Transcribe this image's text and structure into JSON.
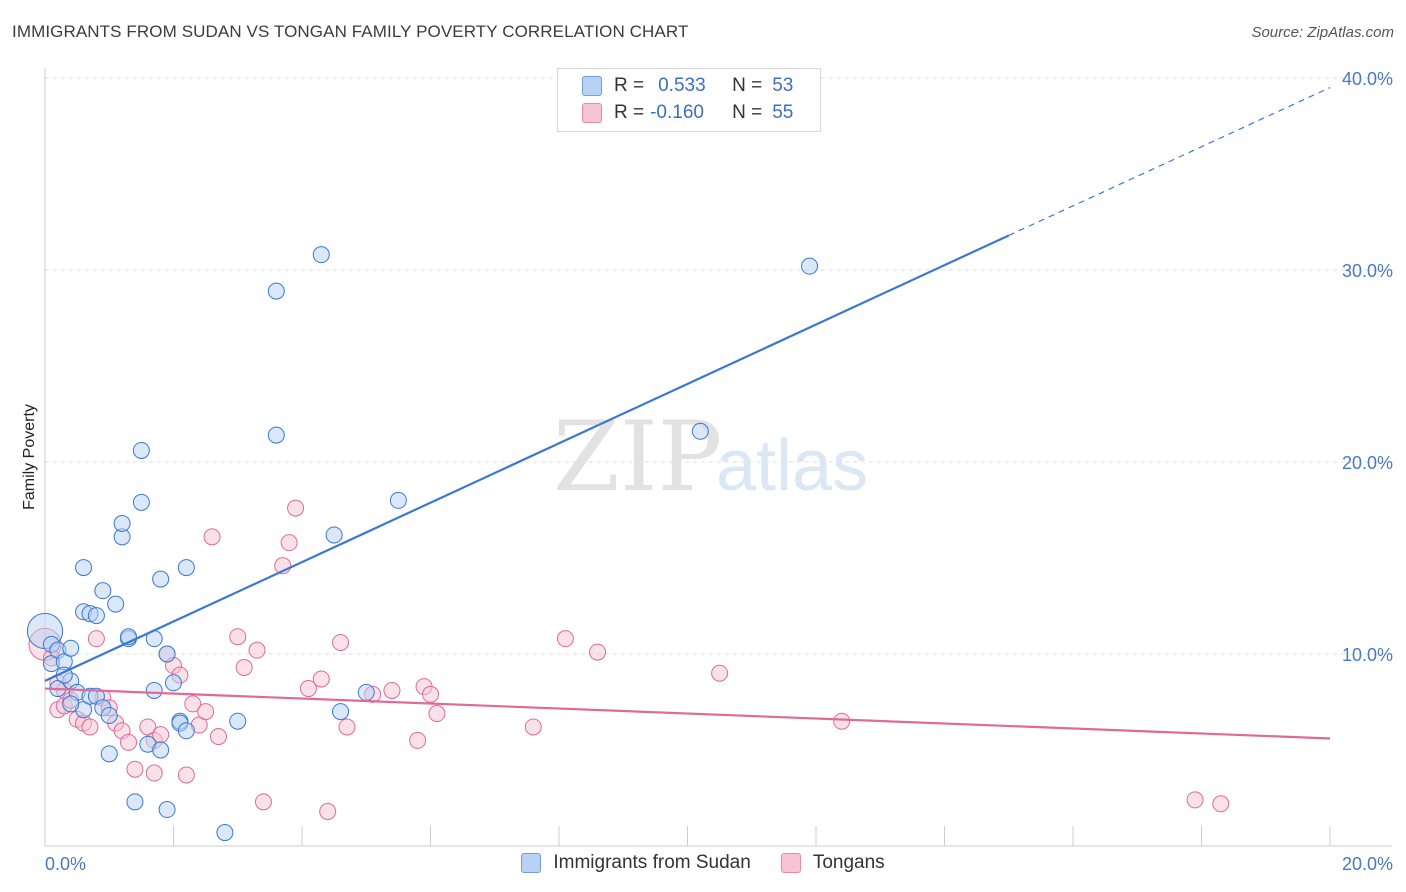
{
  "title": "IMMIGRANTS FROM SUDAN VS TONGAN FAMILY POVERTY CORRELATION CHART",
  "source": "Source: ZipAtlas.com",
  "colors": {
    "series_a": "#3a78d4",
    "series_a_fill": "#b7d2f3",
    "series_b": "#e06a96",
    "series_b_fill": "#f6c3d4",
    "tick_text": "#4a78c2"
  },
  "legend": {
    "row1": {
      "r_label": "R =",
      "r_value": "0.533",
      "n_label": "N =",
      "n_value": "53"
    },
    "row2": {
      "r_label": "R =",
      "r_value": "-0.160",
      "n_label": "N =",
      "n_value": "55"
    }
  },
  "watermark": {
    "zip": "ZIP",
    "atlas": "atlas"
  },
  "chart_data": {
    "type": "scatter",
    "title": "IMMIGRANTS FROM SUDAN VS TONGAN FAMILY POVERTY CORRELATION CHART",
    "xlabel": "",
    "ylabel": "Family Poverty",
    "xlim": [
      0,
      20
    ],
    "ylim": [
      0,
      40
    ],
    "x_tick_labels": [
      "0.0%",
      "20.0%"
    ],
    "y_ticks": [
      10,
      20,
      30,
      40
    ],
    "y_tick_labels": [
      "10.0%",
      "20.0%",
      "30.0%",
      "40.0%"
    ],
    "grid": true,
    "legend_position": "bottom",
    "series": [
      {
        "name": "Immigrants from Sudan",
        "r": 0.533,
        "n": 53,
        "trend": {
          "x0": 0,
          "y0": 8.6,
          "x1": 15,
          "y1": 31.8,
          "dashed_to": {
            "x": 20,
            "y": 39.5
          }
        },
        "points": [
          [
            0.0,
            11.2,
            2.2
          ],
          [
            0.1,
            10.5,
            1
          ],
          [
            0.1,
            9.5,
            1
          ],
          [
            0.2,
            10.2,
            1
          ],
          [
            0.3,
            9.6,
            1
          ],
          [
            0.2,
            8.2,
            1
          ],
          [
            0.4,
            8.6,
            1
          ],
          [
            0.3,
            8.9,
            1
          ],
          [
            0.5,
            8.0,
            1
          ],
          [
            0.6,
            7.1,
            1
          ],
          [
            0.4,
            7.4,
            1
          ],
          [
            0.7,
            7.8,
            1
          ],
          [
            0.8,
            7.8,
            1
          ],
          [
            0.9,
            7.2,
            1
          ],
          [
            0.6,
            12.2,
            1
          ],
          [
            0.7,
            12.1,
            1
          ],
          [
            0.8,
            12.0,
            1
          ],
          [
            0.6,
            14.5,
            1
          ],
          [
            0.9,
            13.3,
            1
          ],
          [
            1.1,
            12.6,
            1
          ],
          [
            1.2,
            16.1,
            1
          ],
          [
            1.2,
            16.8,
            1
          ],
          [
            1.5,
            17.9,
            1
          ],
          [
            1.5,
            20.6,
            1
          ],
          [
            1.3,
            10.8,
            1
          ],
          [
            1.7,
            10.8,
            1
          ],
          [
            1.7,
            8.1,
            1
          ],
          [
            1.8,
            13.9,
            1
          ],
          [
            1.9,
            10.0,
            1
          ],
          [
            2.0,
            8.5,
            1
          ],
          [
            2.2,
            14.5,
            1
          ],
          [
            2.1,
            6.5,
            1
          ],
          [
            2.1,
            6.4,
            1
          ],
          [
            2.2,
            6.0,
            1
          ],
          [
            1.6,
            5.3,
            1
          ],
          [
            1.8,
            5.0,
            1
          ],
          [
            1.0,
            4.8,
            1
          ],
          [
            1.4,
            2.3,
            1
          ],
          [
            1.9,
            1.9,
            1
          ],
          [
            2.8,
            0.7,
            1
          ],
          [
            3.0,
            6.5,
            1
          ],
          [
            3.6,
            28.9,
            1
          ],
          [
            3.6,
            21.4,
            1
          ],
          [
            4.3,
            30.8,
            1
          ],
          [
            4.5,
            16.2,
            1
          ],
          [
            4.6,
            7.0,
            1
          ],
          [
            5.0,
            8.0,
            1
          ],
          [
            5.5,
            18.0,
            1
          ],
          [
            10.2,
            21.6,
            1
          ],
          [
            11.9,
            30.2,
            1
          ],
          [
            1.3,
            10.9,
            1
          ],
          [
            0.4,
            10.3,
            1
          ],
          [
            1.0,
            6.8,
            1
          ]
        ]
      },
      {
        "name": "Tongans",
        "r": -0.16,
        "n": 55,
        "trend": {
          "x0": 0,
          "y0": 8.2,
          "x1": 20,
          "y1": 5.6
        },
        "points": [
          [
            0.0,
            10.5,
            2.0
          ],
          [
            0.1,
            9.8,
            1
          ],
          [
            0.2,
            8.5,
            1
          ],
          [
            0.3,
            8.1,
            1
          ],
          [
            0.2,
            7.1,
            1
          ],
          [
            0.3,
            7.3,
            1
          ],
          [
            0.4,
            7.6,
            1
          ],
          [
            0.5,
            6.6,
            1
          ],
          [
            0.6,
            6.4,
            1
          ],
          [
            0.7,
            6.2,
            1
          ],
          [
            0.9,
            7.7,
            1
          ],
          [
            1.0,
            7.2,
            1
          ],
          [
            1.1,
            6.4,
            1
          ],
          [
            1.2,
            6.0,
            1
          ],
          [
            0.8,
            10.8,
            1
          ],
          [
            1.3,
            5.4,
            1
          ],
          [
            1.4,
            4.0,
            1
          ],
          [
            1.6,
            6.2,
            1
          ],
          [
            1.7,
            5.5,
            1
          ],
          [
            1.8,
            5.8,
            1
          ],
          [
            1.7,
            3.8,
            1
          ],
          [
            1.9,
            10.0,
            1
          ],
          [
            2.0,
            9.4,
            1
          ],
          [
            2.1,
            8.9,
            1
          ],
          [
            2.2,
            3.7,
            1
          ],
          [
            2.3,
            7.4,
            1
          ],
          [
            2.4,
            6.3,
            1
          ],
          [
            2.5,
            7.0,
            1
          ],
          [
            2.6,
            16.1,
            1
          ],
          [
            2.7,
            5.7,
            1
          ],
          [
            3.0,
            10.9,
            1
          ],
          [
            3.1,
            9.3,
            1
          ],
          [
            3.3,
            10.2,
            1
          ],
          [
            3.4,
            2.3,
            1
          ],
          [
            3.7,
            14.6,
            1
          ],
          [
            3.8,
            15.8,
            1
          ],
          [
            3.9,
            17.6,
            1
          ],
          [
            4.1,
            8.2,
            1
          ],
          [
            4.3,
            8.7,
            1
          ],
          [
            4.4,
            1.8,
            1
          ],
          [
            4.6,
            10.6,
            1
          ],
          [
            4.7,
            6.2,
            1
          ],
          [
            5.1,
            7.9,
            1
          ],
          [
            5.4,
            8.1,
            1
          ],
          [
            5.8,
            5.5,
            1
          ],
          [
            5.9,
            8.3,
            1
          ],
          [
            6.0,
            7.9,
            1
          ],
          [
            6.1,
            6.9,
            1
          ],
          [
            7.6,
            6.2,
            1
          ],
          [
            8.1,
            10.8,
            1
          ],
          [
            8.6,
            10.1,
            1
          ],
          [
            10.5,
            9.0,
            1
          ],
          [
            12.4,
            6.5,
            1
          ],
          [
            17.9,
            2.4,
            1
          ],
          [
            18.3,
            2.2,
            1
          ]
        ]
      }
    ]
  }
}
